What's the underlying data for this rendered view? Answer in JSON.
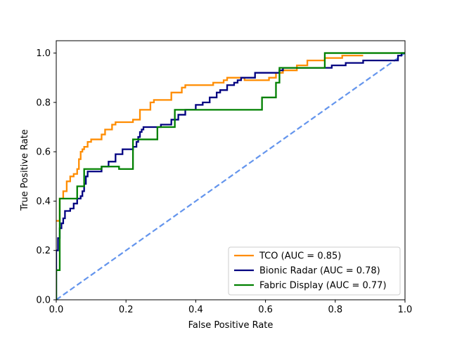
{
  "chart_data": {
    "type": "line",
    "title": "",
    "xlabel": "False Positive Rate",
    "ylabel": "True Positive Rate",
    "xlim": [
      0,
      1
    ],
    "ylim": [
      0,
      1.05
    ],
    "x_ticks": [
      "0.0",
      "0.2",
      "0.4",
      "0.6",
      "0.8",
      "1.0"
    ],
    "y_ticks": [
      "0.0",
      "0.2",
      "0.4",
      "0.6",
      "0.8",
      "1.0"
    ],
    "grid": false,
    "legend_position": "lower-right",
    "series": [
      {
        "name": "TCO (AUC = 0.85)",
        "color": "#ff8c00",
        "points": [
          [
            0.0,
            0.32
          ],
          [
            0.01,
            0.32
          ],
          [
            0.01,
            0.41
          ],
          [
            0.02,
            0.41
          ],
          [
            0.02,
            0.44
          ],
          [
            0.03,
            0.44
          ],
          [
            0.03,
            0.48
          ],
          [
            0.04,
            0.48
          ],
          [
            0.04,
            0.5
          ],
          [
            0.05,
            0.5
          ],
          [
            0.05,
            0.51
          ],
          [
            0.06,
            0.51
          ],
          [
            0.06,
            0.53
          ],
          [
            0.065,
            0.53
          ],
          [
            0.065,
            0.57
          ],
          [
            0.07,
            0.57
          ],
          [
            0.07,
            0.6
          ],
          [
            0.075,
            0.6
          ],
          [
            0.075,
            0.61
          ],
          [
            0.08,
            0.61
          ],
          [
            0.08,
            0.62
          ],
          [
            0.09,
            0.62
          ],
          [
            0.09,
            0.64
          ],
          [
            0.1,
            0.64
          ],
          [
            0.1,
            0.65
          ],
          [
            0.13,
            0.65
          ],
          [
            0.13,
            0.67
          ],
          [
            0.14,
            0.67
          ],
          [
            0.14,
            0.69
          ],
          [
            0.16,
            0.69
          ],
          [
            0.16,
            0.71
          ],
          [
            0.17,
            0.71
          ],
          [
            0.17,
            0.72
          ],
          [
            0.22,
            0.72
          ],
          [
            0.22,
            0.73
          ],
          [
            0.24,
            0.73
          ],
          [
            0.24,
            0.77
          ],
          [
            0.27,
            0.77
          ],
          [
            0.27,
            0.8
          ],
          [
            0.28,
            0.8
          ],
          [
            0.28,
            0.81
          ],
          [
            0.33,
            0.81
          ],
          [
            0.33,
            0.84
          ],
          [
            0.36,
            0.84
          ],
          [
            0.36,
            0.86
          ],
          [
            0.37,
            0.86
          ],
          [
            0.37,
            0.87
          ],
          [
            0.45,
            0.87
          ],
          [
            0.45,
            0.88
          ],
          [
            0.48,
            0.88
          ],
          [
            0.48,
            0.89
          ],
          [
            0.49,
            0.89
          ],
          [
            0.49,
            0.9
          ],
          [
            0.54,
            0.9
          ],
          [
            0.54,
            0.89
          ],
          [
            0.61,
            0.89
          ],
          [
            0.61,
            0.9
          ],
          [
            0.63,
            0.9
          ],
          [
            0.63,
            0.92
          ],
          [
            0.65,
            0.92
          ],
          [
            0.65,
            0.93
          ],
          [
            0.69,
            0.93
          ],
          [
            0.69,
            0.95
          ],
          [
            0.72,
            0.95
          ],
          [
            0.72,
            0.97
          ],
          [
            0.77,
            0.97
          ],
          [
            0.77,
            0.98
          ],
          [
            0.82,
            0.98
          ],
          [
            0.82,
            0.99
          ],
          [
            0.88,
            0.99
          ]
        ]
      },
      {
        "name": "Bionic Radar (AUC = 0.78)",
        "color": "#000080",
        "points": [
          [
            0.0,
            0.0
          ],
          [
            0.0,
            0.2
          ],
          [
            0.005,
            0.2
          ],
          [
            0.005,
            0.25
          ],
          [
            0.01,
            0.25
          ],
          [
            0.01,
            0.29
          ],
          [
            0.015,
            0.29
          ],
          [
            0.015,
            0.31
          ],
          [
            0.02,
            0.31
          ],
          [
            0.02,
            0.33
          ],
          [
            0.025,
            0.33
          ],
          [
            0.025,
            0.36
          ],
          [
            0.04,
            0.36
          ],
          [
            0.04,
            0.37
          ],
          [
            0.05,
            0.37
          ],
          [
            0.05,
            0.39
          ],
          [
            0.06,
            0.39
          ],
          [
            0.06,
            0.41
          ],
          [
            0.07,
            0.41
          ],
          [
            0.07,
            0.42
          ],
          [
            0.075,
            0.42
          ],
          [
            0.075,
            0.44
          ],
          [
            0.08,
            0.44
          ],
          [
            0.08,
            0.47
          ],
          [
            0.085,
            0.47
          ],
          [
            0.085,
            0.5
          ],
          [
            0.09,
            0.5
          ],
          [
            0.09,
            0.52
          ],
          [
            0.13,
            0.52
          ],
          [
            0.13,
            0.54
          ],
          [
            0.15,
            0.54
          ],
          [
            0.15,
            0.56
          ],
          [
            0.17,
            0.56
          ],
          [
            0.17,
            0.59
          ],
          [
            0.19,
            0.59
          ],
          [
            0.19,
            0.61
          ],
          [
            0.22,
            0.61
          ],
          [
            0.22,
            0.62
          ],
          [
            0.23,
            0.62
          ],
          [
            0.23,
            0.64
          ],
          [
            0.235,
            0.64
          ],
          [
            0.235,
            0.66
          ],
          [
            0.24,
            0.66
          ],
          [
            0.24,
            0.68
          ],
          [
            0.245,
            0.68
          ],
          [
            0.245,
            0.69
          ],
          [
            0.25,
            0.69
          ],
          [
            0.25,
            0.7
          ],
          [
            0.3,
            0.7
          ],
          [
            0.3,
            0.71
          ],
          [
            0.33,
            0.71
          ],
          [
            0.33,
            0.73
          ],
          [
            0.35,
            0.73
          ],
          [
            0.35,
            0.75
          ],
          [
            0.37,
            0.75
          ],
          [
            0.37,
            0.77
          ],
          [
            0.4,
            0.77
          ],
          [
            0.4,
            0.79
          ],
          [
            0.42,
            0.79
          ],
          [
            0.42,
            0.8
          ],
          [
            0.44,
            0.8
          ],
          [
            0.44,
            0.82
          ],
          [
            0.46,
            0.82
          ],
          [
            0.46,
            0.84
          ],
          [
            0.47,
            0.84
          ],
          [
            0.47,
            0.85
          ],
          [
            0.49,
            0.85
          ],
          [
            0.49,
            0.87
          ],
          [
            0.51,
            0.87
          ],
          [
            0.51,
            0.88
          ],
          [
            0.52,
            0.88
          ],
          [
            0.52,
            0.89
          ],
          [
            0.53,
            0.89
          ],
          [
            0.53,
            0.9
          ],
          [
            0.57,
            0.9
          ],
          [
            0.57,
            0.92
          ],
          [
            0.64,
            0.92
          ],
          [
            0.64,
            0.93
          ],
          [
            0.65,
            0.93
          ],
          [
            0.65,
            0.94
          ],
          [
            0.79,
            0.94
          ],
          [
            0.79,
            0.95
          ],
          [
            0.83,
            0.95
          ],
          [
            0.83,
            0.96
          ],
          [
            0.88,
            0.96
          ],
          [
            0.88,
            0.97
          ],
          [
            0.98,
            0.97
          ],
          [
            0.98,
            0.99
          ],
          [
            0.99,
            0.99
          ],
          [
            0.99,
            1.0
          ],
          [
            1.0,
            1.0
          ]
        ]
      },
      {
        "name": "Fabric Display (AUC = 0.77)",
        "color": "#008000",
        "points": [
          [
            0.0,
            0.0
          ],
          [
            0.0,
            0.12
          ],
          [
            0.01,
            0.12
          ],
          [
            0.01,
            0.41
          ],
          [
            0.06,
            0.41
          ],
          [
            0.06,
            0.46
          ],
          [
            0.08,
            0.46
          ],
          [
            0.08,
            0.53
          ],
          [
            0.13,
            0.53
          ],
          [
            0.13,
            0.54
          ],
          [
            0.18,
            0.54
          ],
          [
            0.18,
            0.53
          ],
          [
            0.22,
            0.53
          ],
          [
            0.22,
            0.65
          ],
          [
            0.29,
            0.65
          ],
          [
            0.29,
            0.7
          ],
          [
            0.34,
            0.7
          ],
          [
            0.34,
            0.77
          ],
          [
            0.59,
            0.77
          ],
          [
            0.59,
            0.82
          ],
          [
            0.63,
            0.82
          ],
          [
            0.63,
            0.88
          ],
          [
            0.64,
            0.88
          ],
          [
            0.64,
            0.94
          ],
          [
            0.77,
            0.94
          ],
          [
            0.77,
            1.0
          ],
          [
            1.0,
            1.0
          ]
        ]
      }
    ],
    "diagonal": {
      "color": "#6495ed",
      "points": [
        [
          0,
          0
        ],
        [
          1,
          1
        ]
      ]
    }
  }
}
